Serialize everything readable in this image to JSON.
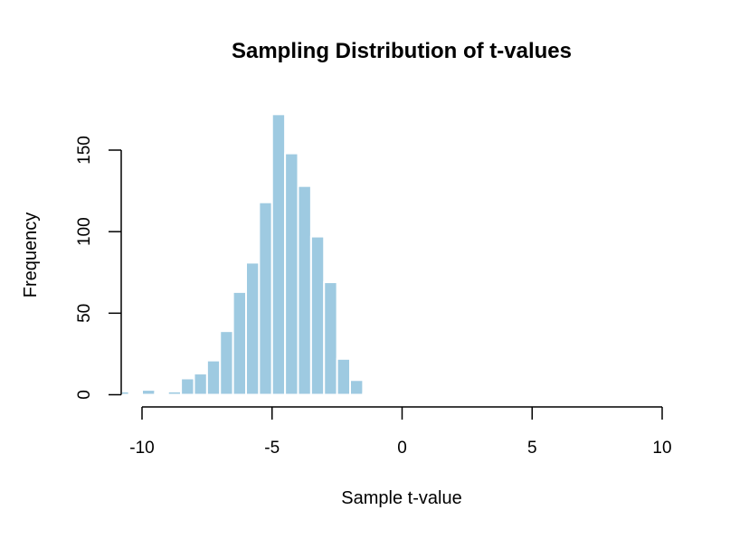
{
  "chart_data": {
    "type": "bar",
    "title": "Sampling Distribution of t-values",
    "xlabel": "Sample t-value",
    "ylabel": "Frequency",
    "xlim": [
      -10.8,
      10
    ],
    "ylim": [
      0,
      172
    ],
    "x_ticks": [
      -10,
      -5,
      0,
      5,
      10
    ],
    "x_tick_labels": [
      "-10",
      "-5",
      "0",
      "5",
      "10"
    ],
    "y_ticks": [
      0,
      50,
      100,
      150
    ],
    "y_tick_labels": [
      "0",
      "50",
      "100",
      "150"
    ],
    "bin_width": 0.5,
    "bin_starts": [
      -11,
      -10.5,
      -10,
      -9.5,
      -9,
      -8.5,
      -8,
      -7.5,
      -7,
      -6.5,
      -6,
      -5.5,
      -5,
      -4.5,
      -4,
      -3.5,
      -3,
      -2.5,
      -2,
      -1.5,
      -1,
      -0.5
    ],
    "values": [
      2,
      0,
      3,
      1,
      2,
      10,
      13,
      21,
      39,
      63,
      81,
      118,
      172,
      148,
      128,
      97,
      69,
      22,
      9,
      1,
      1,
      1
    ],
    "grid": false,
    "legend": "none",
    "colors": {
      "bar_fill": "#9ecae1",
      "bar_stroke": "#ffffff",
      "axis": "#000000",
      "background": "#ffffff"
    }
  }
}
